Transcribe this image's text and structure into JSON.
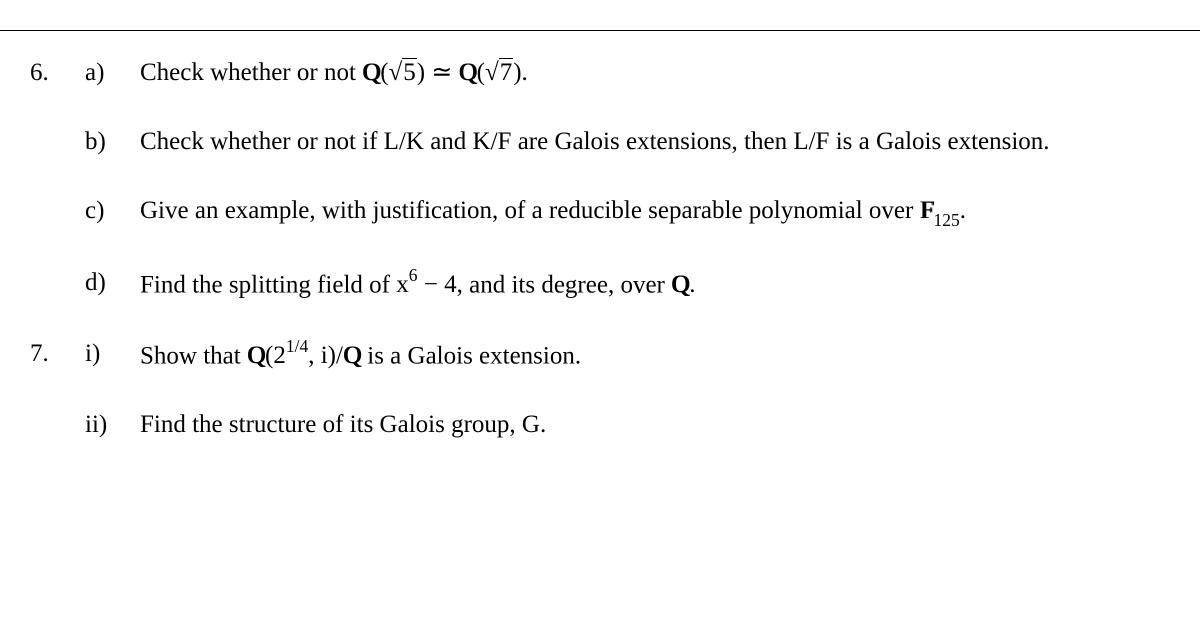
{
  "rule_color": "#000000",
  "background_color": "#ffffff",
  "text_color": "#000000",
  "font_family": "Times New Roman",
  "font_size_pt": 19,
  "questions": [
    {
      "number": "6.",
      "parts": [
        {
          "label": "a)",
          "text_before": "Check whether or not ",
          "math_expr": "Q(√5) ≃ Q(√7)",
          "math_html": "<span class='bbq'>Q</span>(<span class='sqrt'><span class='radicand'>5</span></span>)<span class='iso'> ≃ </span><span class='bbq'>Q</span>(<span class='sqrt'><span class='radicand'>7</span></span>).",
          "text_after": ""
        },
        {
          "label": "b)",
          "text_full": "Check whether or not if  L/K  and  K/F  are Galois extensions, then  L/F  is a Galois extension."
        },
        {
          "label": "c)",
          "text_before": "Give an example, with justification, of a reducible separable polynomial over  ",
          "math_html": "<span class='bbf'>F</span><sub>125</sub>.",
          "text_after": ""
        },
        {
          "label": "d)",
          "text_before": "Find the splitting field of  ",
          "math_html": "x<sup>6</sup> − 4,",
          "text_after": "  and its degree, over  ",
          "math_html2": "<span class='bbq'>Q</span>."
        }
      ]
    },
    {
      "number": "7.",
      "parts": [
        {
          "label": "i)",
          "text_before": "Show that  ",
          "math_html": "<span class='bbq'>Q</span>(2<sup>1/4</sup>, i)/<span class='bbq'>Q</span>",
          "text_after": "  is a Galois extension."
        },
        {
          "label": "ii)",
          "text_full": "Find the structure of its Galois group, G."
        }
      ]
    }
  ]
}
